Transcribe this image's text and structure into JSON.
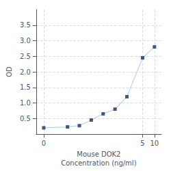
{
  "chart_data": {
    "type": "line",
    "x": [
      0.0156,
      0.0625,
      0.125,
      0.25,
      0.5,
      1.0,
      2.0,
      5.0,
      10.0
    ],
    "series": [
      {
        "type": "line",
        "color": "#b8d4ea",
        "values": [
          0.2,
          0.23,
          0.27,
          0.45,
          0.65,
          0.8,
          1.2,
          2.45,
          2.8
        ]
      },
      {
        "type": "scatter",
        "color": "#1a3060",
        "marker": "square",
        "values": [
          0.2,
          0.23,
          0.27,
          0.45,
          0.65,
          0.8,
          1.2,
          2.45,
          2.8
        ]
      }
    ],
    "xlabel": "Mouse DOK2\nConcentration (ng/ml)",
    "ylabel": "OD",
    "log": "x",
    "xlim": [
      0.01,
      15
    ],
    "xticks": [
      {
        "value": 0.0156,
        "label": "0"
      },
      5,
      10
    ],
    "ylim": [
      0,
      4.0
    ],
    "yticks": [
      0.5,
      {
        "value": 1.0,
        "label": "1.0"
      },
      1.5,
      {
        "value": 2.0,
        "label": "2.0"
      },
      2.5,
      {
        "value": 3.0,
        "label": "3.0"
      },
      3.5
    ],
    "grid": true
  }
}
